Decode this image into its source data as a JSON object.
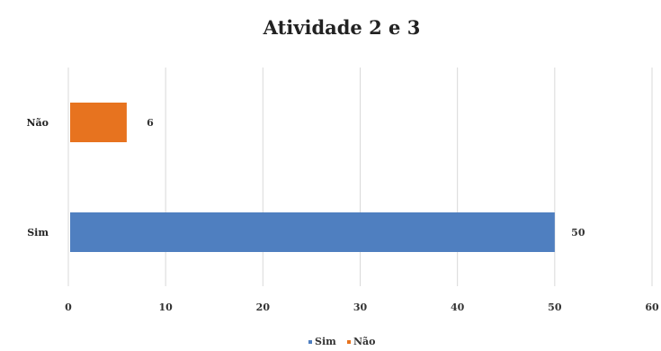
{
  "chart_data": {
    "type": "bar",
    "orientation": "horizontal",
    "title": "Atividade 2 e 3",
    "categories": [
      "Sim",
      "Não"
    ],
    "series": [
      {
        "name": "Sim",
        "category": "Sim",
        "value": 50,
        "color": "#4f7fc0"
      },
      {
        "name": "Não",
        "category": "Não",
        "value": 6,
        "color": "#e7731f"
      }
    ],
    "xlim": [
      0,
      60
    ],
    "xticks": [
      "0",
      "10",
      "20",
      "30",
      "40",
      "50",
      "60"
    ],
    "data_labels": [
      "50",
      "6"
    ],
    "grid": "vertical",
    "legend": "bottom"
  }
}
